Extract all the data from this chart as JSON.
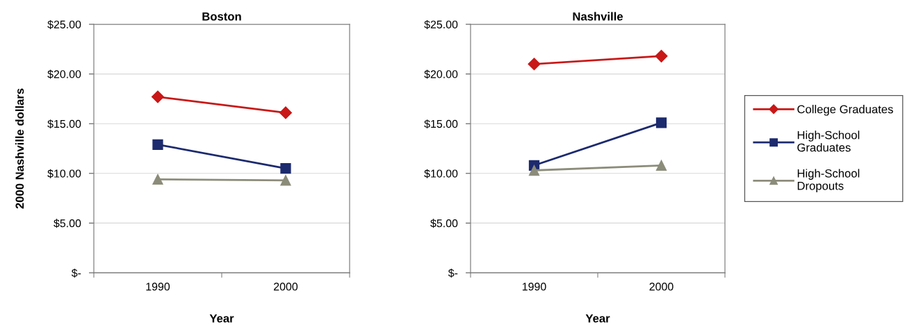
{
  "chart_data": [
    {
      "type": "line",
      "title": "Boston",
      "xlabel": "Year",
      "ylabel": "2000 Nashville dollars",
      "categories": [
        "1990",
        "2000"
      ],
      "series": [
        {
          "color": "#c81818",
          "marker": "diamond",
          "values": [
            17.7,
            16.1
          ]
        },
        {
          "color": "#1c2a6e",
          "marker": "square",
          "values": [
            12.9,
            10.5
          ]
        },
        {
          "color": "#8c8c7a",
          "marker": "triangle",
          "values": [
            9.4,
            9.3
          ]
        }
      ],
      "ylim": [
        0,
        25
      ],
      "yticks": [
        {
          "value": 0,
          "label": "$-"
        },
        {
          "value": 5,
          "label": "$5.00"
        },
        {
          "value": 10,
          "label": "$10.00"
        },
        {
          "value": 15,
          "label": "$15.00"
        },
        {
          "value": 20,
          "label": "$20.00"
        },
        {
          "value": 25,
          "label": "$25.00"
        }
      ],
      "grid": "y"
    },
    {
      "type": "line",
      "title": "Nashville",
      "xlabel": "Year",
      "categories": [
        "1990",
        "2000"
      ],
      "series": [
        {
          "name": "College Graduates",
          "color": "#c81818",
          "marker": "diamond",
          "values": [
            21.0,
            21.8
          ]
        },
        {
          "name": "High-School Graduates",
          "color": "#1c2a6e",
          "marker": "square",
          "values": [
            10.8,
            15.1
          ]
        },
        {
          "name": "High-School Dropouts",
          "color": "#8c8c7a",
          "marker": "triangle",
          "values": [
            10.3,
            10.8
          ]
        }
      ],
      "ylim": [
        0,
        25
      ],
      "yticks": [
        {
          "value": 0,
          "label": "$-"
        },
        {
          "value": 5,
          "label": "$5.00"
        },
        {
          "value": 10,
          "label": "$10.00"
        },
        {
          "value": 15,
          "label": "$15.00"
        },
        {
          "value": 20,
          "label": "$20.00"
        },
        {
          "value": 25,
          "label": "$25.00"
        }
      ],
      "grid": "y",
      "legend": "right"
    }
  ]
}
